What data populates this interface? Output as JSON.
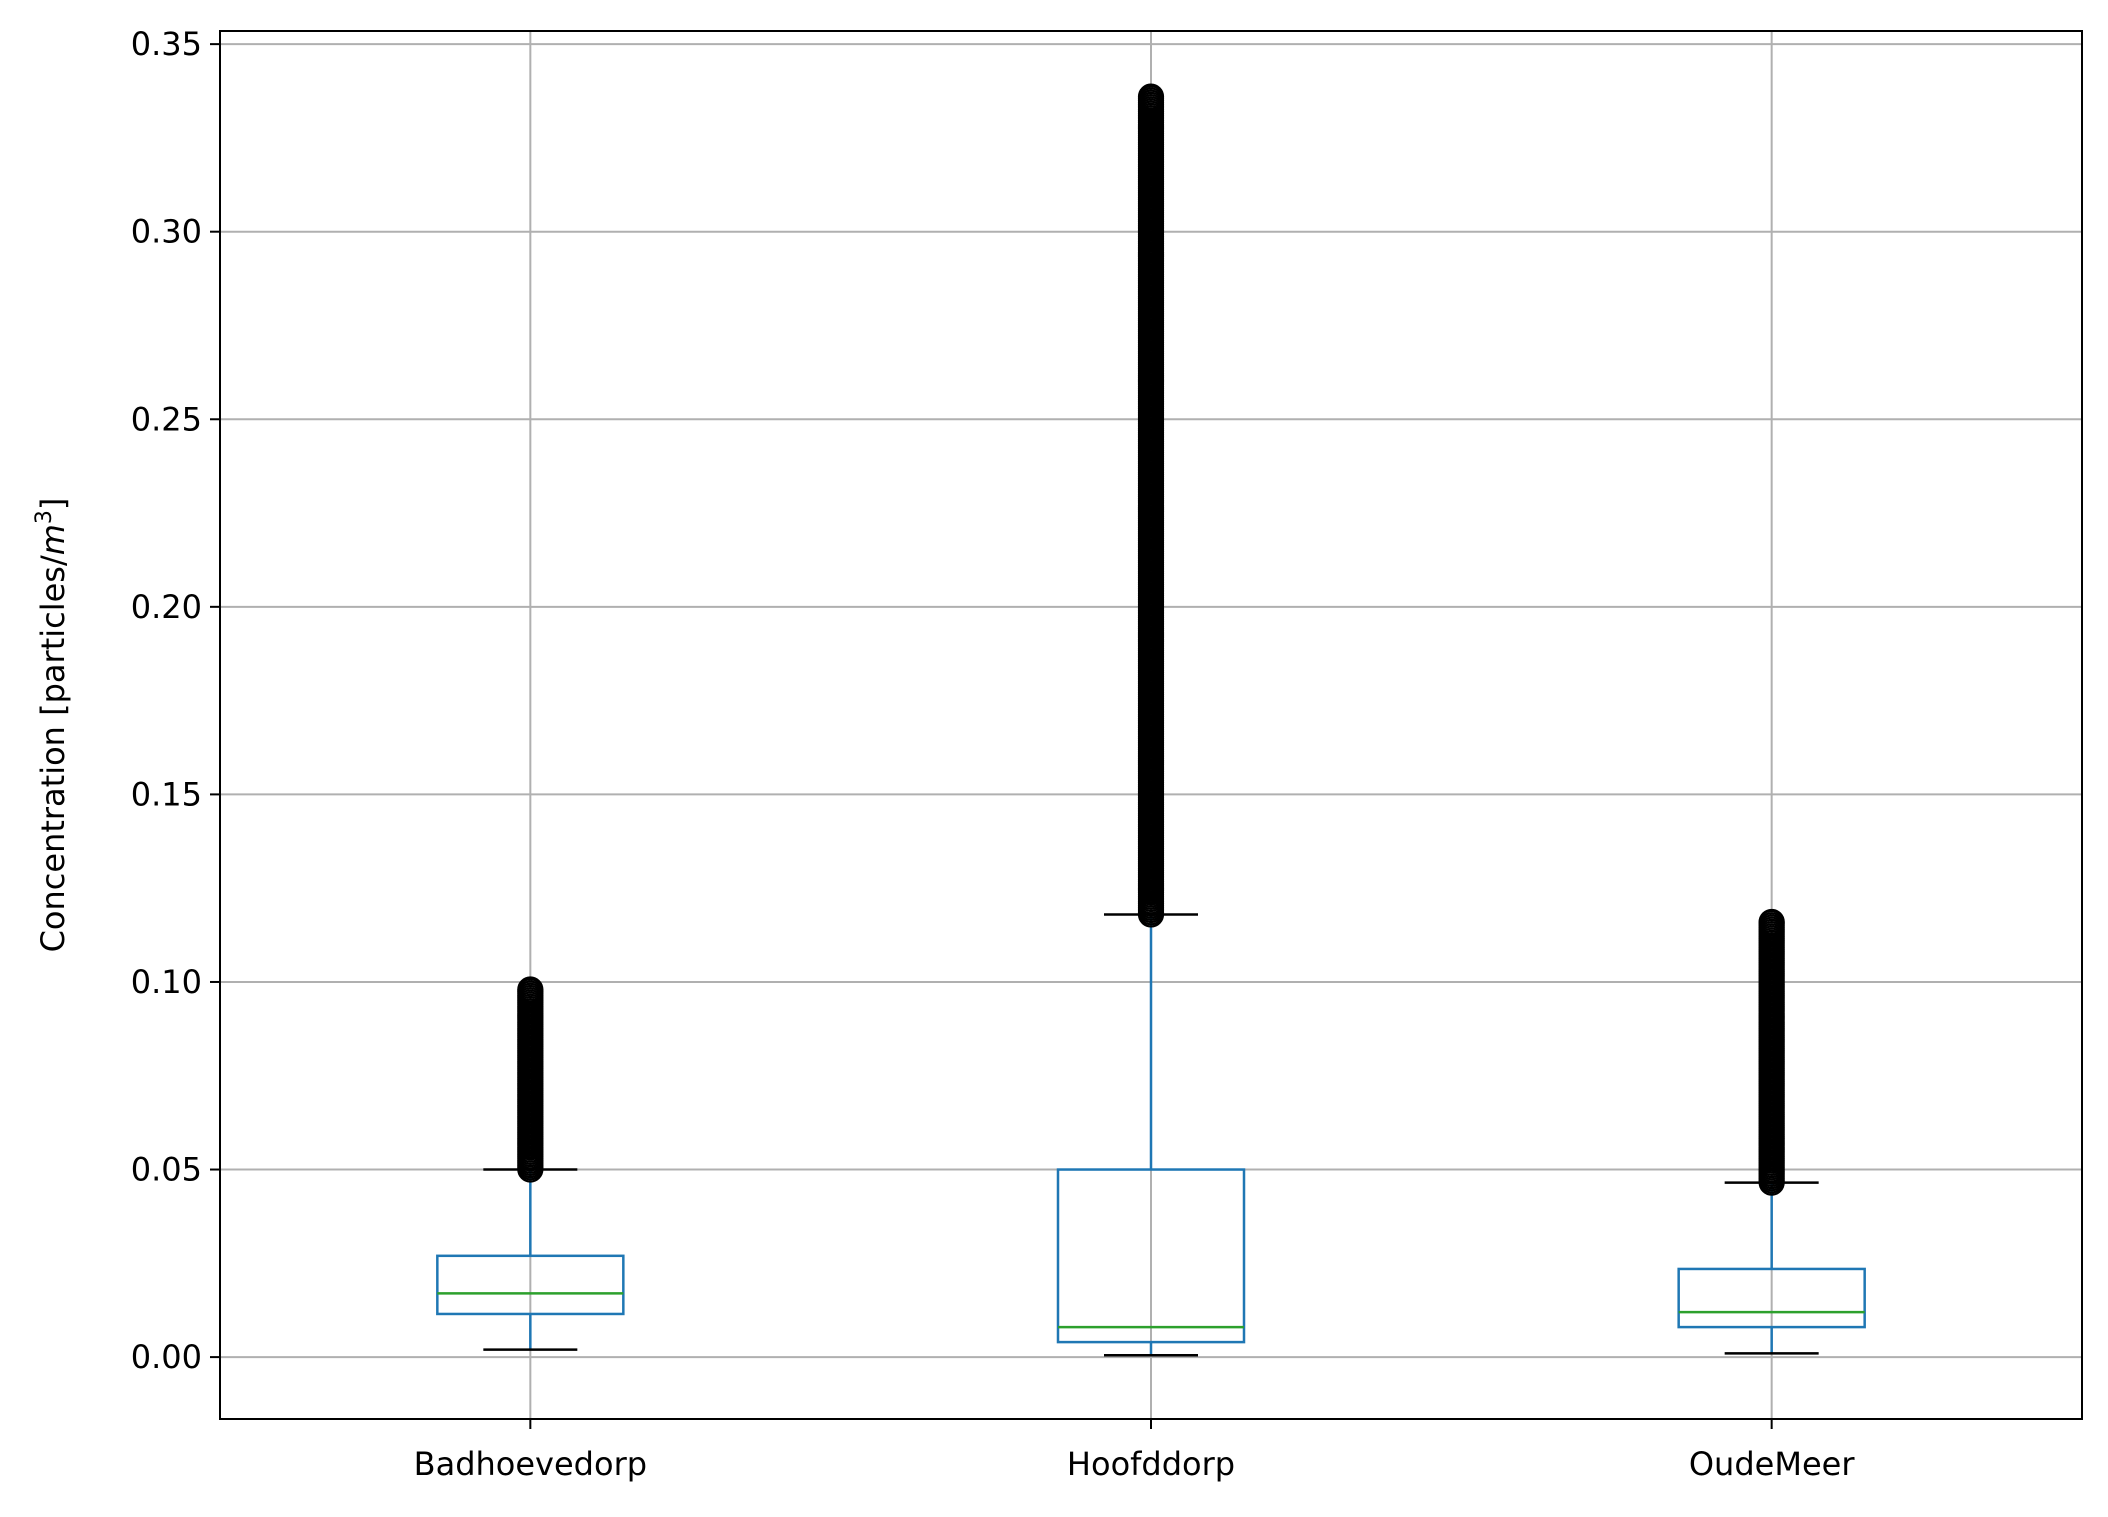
{
  "chart_data": {
    "type": "box",
    "title": "",
    "xlabel": "",
    "ylabel": "Concentration [particles/",
    "ylabel_unit_base": "m",
    "ylabel_unit_exp": "3",
    "ylabel_close": "]",
    "ylim": [
      -0.0165,
      0.3535
    ],
    "yticks": [
      0.0,
      0.05,
      0.1,
      0.15,
      0.2,
      0.25,
      0.3,
      0.35
    ],
    "ytick_labels": [
      "0.00",
      "0.05",
      "0.10",
      "0.15",
      "0.20",
      "0.25",
      "0.30",
      "0.35"
    ],
    "grid": true,
    "categories": [
      "Badhoevedorp",
      "Hoofddorp",
      "OudeMeer"
    ],
    "boxes": [
      {
        "name": "Badhoevedorp",
        "whisker_low": 0.002,
        "q1": 0.0115,
        "median": 0.017,
        "q3": 0.027,
        "whisker_high": 0.05,
        "outlier_range": [
          0.05,
          0.098
        ]
      },
      {
        "name": "Hoofddorp",
        "whisker_low": 0.0005,
        "q1": 0.004,
        "median": 0.008,
        "q3": 0.05,
        "whisker_high": 0.118,
        "outlier_range": [
          0.118,
          0.336
        ]
      },
      {
        "name": "OudeMeer",
        "whisker_low": 0.001,
        "q1": 0.008,
        "median": 0.012,
        "q3": 0.0235,
        "whisker_high": 0.0465,
        "outlier_range": [
          0.0465,
          0.116
        ]
      }
    ],
    "colors": {
      "box": "#1f77b4",
      "median": "#2ca02c",
      "whisker_cap": "#000000",
      "grid": "#b0b0b0",
      "outlier": "#000000"
    }
  }
}
